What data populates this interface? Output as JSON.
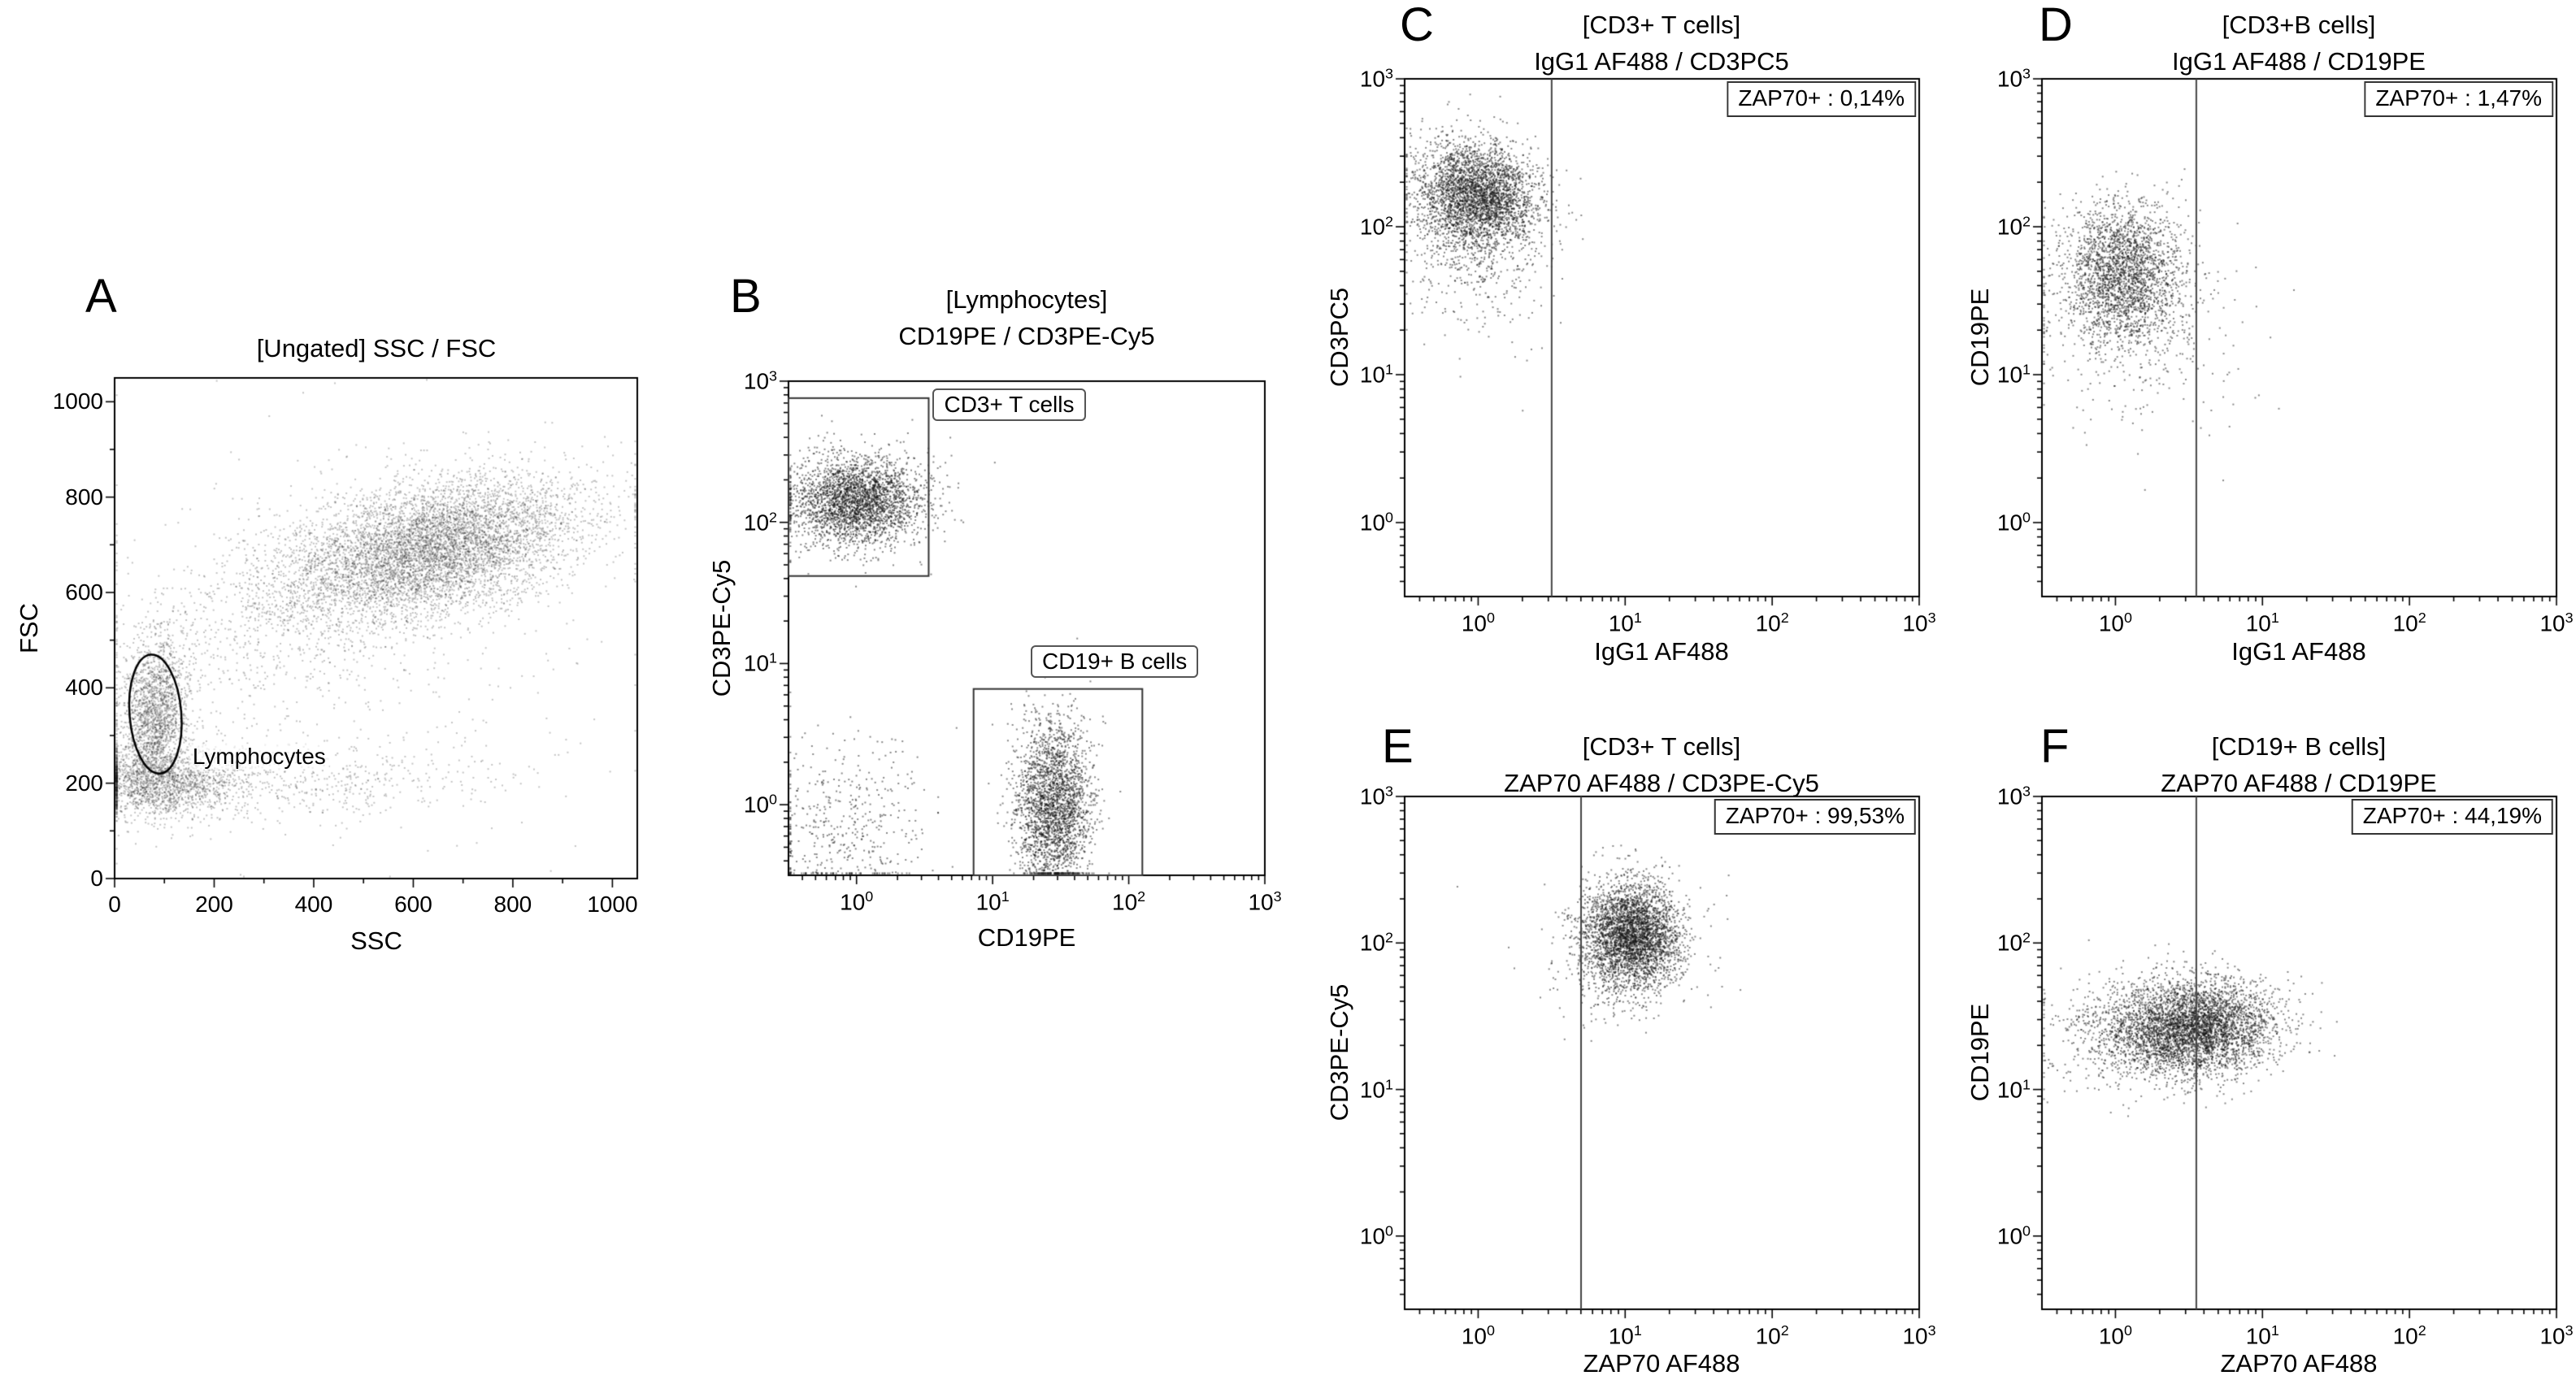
{
  "figure": {
    "background": "#ffffff",
    "dot_color": "#141414",
    "gate_color": "#333333"
  },
  "chart_data": [
    {
      "id": "A",
      "type": "scatter",
      "panel_label": "A",
      "title_lines": [
        "[Ungated] SSC / FSC"
      ],
      "xlabel": "SSC",
      "ylabel": "FSC",
      "x_scale": "linear",
      "y_scale": "linear",
      "xlim": [
        0,
        1050
      ],
      "ylim": [
        0,
        1050
      ],
      "x_ticks": [
        0,
        200,
        400,
        600,
        800,
        1000
      ],
      "y_ticks": [
        0,
        200,
        400,
        600,
        800,
        1000
      ],
      "dot": {
        "size": 2,
        "alpha": 0.25
      },
      "populations": [
        {
          "name": "granulocytes-monocytes",
          "cx": 635,
          "cy": 690,
          "sx": 150,
          "sy": 75,
          "corr": 0.4,
          "n": 6500
        },
        {
          "name": "monocyte-bridge",
          "cx": 330,
          "cy": 560,
          "sx": 130,
          "sy": 90,
          "corr": 0.3,
          "n": 500
        },
        {
          "name": "lymphocytes",
          "cx": 82,
          "cy": 340,
          "sx": 34,
          "sy": 85,
          "corr": 0.05,
          "n": 2000
        },
        {
          "name": "debris",
          "cx": 90,
          "cy": 200,
          "sx": 90,
          "sy": 35,
          "corr": 0,
          "n": 1700
        },
        {
          "name": "debris-band",
          "cx": 380,
          "cy": 210,
          "sx": 210,
          "sy": 40,
          "corr": 0,
          "n": 500
        },
        {
          "name": "background-haze",
          "cx": 420,
          "cy": 470,
          "sx": 260,
          "sy": 200,
          "corr": 0.1,
          "n": 500
        }
      ],
      "gates": [
        {
          "type": "ellipse",
          "cx": 82,
          "cy": 345,
          "rx": 52,
          "ry": 125,
          "rot": -0.08
        }
      ],
      "gate_labels": [
        {
          "text": "Lymphocytes",
          "x": 150,
          "y": 255,
          "boxed": false,
          "anchor": "left-middle"
        }
      ]
    },
    {
      "id": "B",
      "type": "scatter",
      "panel_label": "B",
      "title_lines": [
        "[Lymphocytes]",
        "CD19PE / CD3PE-Cy5"
      ],
      "xlabel": "CD19PE",
      "ylabel": "CD3PE-Cy5",
      "x_scale": "log",
      "y_scale": "log",
      "xlim": [
        -0.5,
        3
      ],
      "ylim": [
        -0.5,
        3
      ],
      "x_ticks": [
        0,
        1,
        2,
        3
      ],
      "y_ticks": [
        0,
        1,
        2,
        3
      ],
      "dot": {
        "size": 2,
        "alpha": 0.5
      },
      "populations": [
        {
          "name": "cd3-t-cells",
          "cx": 0.0,
          "cy": 2.15,
          "sx": 0.24,
          "sy": 0.16,
          "corr": 0,
          "n": 2800
        },
        {
          "name": "cd19-b-cells",
          "cx": 1.45,
          "cy": 0.0,
          "sx": 0.14,
          "sy": 0.3,
          "corr": 0,
          "n": 2500
        },
        {
          "name": "double-negative",
          "cx": -0.1,
          "cy": -0.15,
          "sx": 0.3,
          "sy": 0.32,
          "corr": 0,
          "n": 450
        }
      ],
      "gates": [
        {
          "type": "rect",
          "x0": -0.5,
          "y0": 1.62,
          "x1": 0.53,
          "y1": 2.88
        },
        {
          "type": "rect",
          "x0": 0.86,
          "y0": -0.5,
          "x1": 2.1,
          "y1": 0.82
        }
      ],
      "gate_labels": [
        {
          "text": "CD3+ T cells",
          "x": 0.56,
          "y": 2.95,
          "boxed": true,
          "anchor": "left-top"
        },
        {
          "text": "CD19+ B cells",
          "x": 1.28,
          "y": 0.9,
          "boxed": true,
          "anchor": "left-bottom"
        }
      ]
    },
    {
      "id": "C",
      "type": "scatter",
      "panel_label": "C",
      "title_lines": [
        "[CD3+ T cells]",
        "IgG1 AF488 / CD3PC5"
      ],
      "xlabel": "IgG1 AF488",
      "ylabel": "CD3PC5",
      "x_scale": "log",
      "y_scale": "log",
      "xlim": [
        -0.5,
        3
      ],
      "ylim": [
        -0.5,
        3
      ],
      "x_ticks": [
        0,
        1,
        2,
        3
      ],
      "y_ticks": [
        0,
        1,
        2,
        3
      ],
      "dot": {
        "size": 2,
        "alpha": 0.5
      },
      "annotation": "ZAP70+ : 0,14%",
      "populations": [
        {
          "name": "t-cells",
          "cx": 0.0,
          "cy": 2.2,
          "sx": 0.2,
          "sy": 0.18,
          "corr": -0.1,
          "n": 3200
        },
        {
          "name": "t-cells-tail",
          "cx": 0.0,
          "cy": 1.85,
          "sx": 0.25,
          "sy": 0.3,
          "corr": 0,
          "n": 450
        }
      ],
      "gates": [
        {
          "type": "vline",
          "x": 0.5
        }
      ],
      "gate_labels": []
    },
    {
      "id": "D",
      "type": "scatter",
      "panel_label": "D",
      "title_lines": [
        "[CD3+B cells]",
        "IgG1 AF488 / CD19PE"
      ],
      "xlabel": "IgG1 AF488",
      "ylabel": "CD19PE",
      "x_scale": "log",
      "y_scale": "log",
      "xlim": [
        -0.5,
        3
      ],
      "ylim": [
        -0.5,
        3
      ],
      "x_ticks": [
        0,
        1,
        2,
        3
      ],
      "y_ticks": [
        0,
        1,
        2,
        3
      ],
      "dot": {
        "size": 2,
        "alpha": 0.5
      },
      "annotation": "ZAP70+ : 1,47%",
      "populations": [
        {
          "name": "b-cells",
          "cx": 0.05,
          "cy": 1.68,
          "sx": 0.2,
          "sy": 0.24,
          "corr": 0,
          "n": 2400
        },
        {
          "name": "b-cells-scatter",
          "cx": 0.1,
          "cy": 1.3,
          "sx": 0.38,
          "sy": 0.35,
          "corr": 0,
          "n": 350
        }
      ],
      "gates": [
        {
          "type": "vline",
          "x": 0.55
        }
      ],
      "gate_labels": []
    },
    {
      "id": "E",
      "type": "scatter",
      "panel_label": "E",
      "title_lines": [
        "[CD3+ T cells]",
        "ZAP70 AF488 / CD3PE-Cy5"
      ],
      "xlabel": "ZAP70 AF488",
      "ylabel": "CD3PE-Cy5",
      "x_scale": "log",
      "y_scale": "log",
      "xlim": [
        -0.5,
        3
      ],
      "ylim": [
        -0.5,
        3
      ],
      "x_ticks": [
        0,
        1,
        2,
        3
      ],
      "y_ticks": [
        0,
        1,
        2,
        3
      ],
      "dot": {
        "size": 2,
        "alpha": 0.5
      },
      "annotation": "ZAP70+ : 99,53%",
      "populations": [
        {
          "name": "t-cells-zap70",
          "cx": 1.05,
          "cy": 2.05,
          "sx": 0.16,
          "sy": 0.18,
          "corr": 0,
          "n": 3400
        },
        {
          "name": "fringe",
          "cx": 0.95,
          "cy": 1.95,
          "sx": 0.28,
          "sy": 0.28,
          "corr": 0,
          "n": 300
        }
      ],
      "gates": [
        {
          "type": "vline",
          "x": 0.7
        }
      ],
      "gate_labels": []
    },
    {
      "id": "F",
      "type": "scatter",
      "panel_label": "F",
      "title_lines": [
        "[CD19+ B cells]",
        "ZAP70 AF488 / CD19PE"
      ],
      "xlabel": "ZAP70 AF488",
      "ylabel": "CD19PE",
      "x_scale": "log",
      "y_scale": "log",
      "xlim": [
        -0.5,
        3
      ],
      "ylim": [
        -0.5,
        3
      ],
      "x_ticks": [
        0,
        1,
        2,
        3
      ],
      "y_ticks": [
        0,
        1,
        2,
        3
      ],
      "dot": {
        "size": 2,
        "alpha": 0.5
      },
      "annotation": "ZAP70+ : 44,19%",
      "populations": [
        {
          "name": "b-cells-zap70",
          "cx": 0.52,
          "cy": 1.42,
          "sx": 0.28,
          "sy": 0.16,
          "corr": 0.05,
          "n": 4200
        },
        {
          "name": "left-fringe",
          "cx": 0.0,
          "cy": 1.4,
          "sx": 0.3,
          "sy": 0.2,
          "corr": 0,
          "n": 400
        }
      ],
      "gates": [
        {
          "type": "vline",
          "x": 0.55
        }
      ],
      "gate_labels": []
    }
  ]
}
